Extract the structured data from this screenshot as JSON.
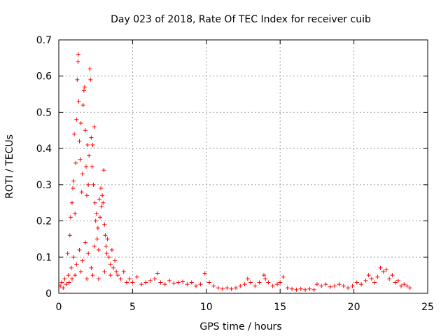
{
  "chart_data": {
    "type": "scatter",
    "title": "Day 023 of 2018, Rate Of TEC Index for receiver cuib",
    "xlabel": "GPS time / hours",
    "ylabel": "ROTI / TECUs",
    "xlim": [
      0,
      25
    ],
    "ylim": [
      0,
      0.7
    ],
    "xticks": [
      0,
      5,
      10,
      15,
      20,
      25
    ],
    "xtick_labels": [
      "0",
      "5",
      "10",
      "15",
      "20",
      "25"
    ],
    "yticks": [
      0,
      0.1,
      0.2,
      0.3,
      0.4,
      0.5,
      0.6,
      0.7
    ],
    "ytick_labels": [
      "0",
      "0.1",
      "0.2",
      "0.3",
      "0.4",
      "0.5",
      "0.6",
      "0.7"
    ],
    "grid": true,
    "marker": "plus",
    "color": "#ff0000",
    "series": [
      {
        "name": "ROTI",
        "points": [
          [
            0.1,
            0.02
          ],
          [
            0.2,
            0.03
          ],
          [
            0.3,
            0.015
          ],
          [
            0.4,
            0.04
          ],
          [
            0.5,
            0.025
          ],
          [
            0.6,
            0.11
          ],
          [
            0.65,
            0.05
          ],
          [
            0.7,
            0.03
          ],
          [
            0.75,
            0.16
          ],
          [
            0.8,
            0.21
          ],
          [
            0.85,
            0.07
          ],
          [
            0.9,
            0.25
          ],
          [
            0.95,
            0.29
          ],
          [
            1.0,
            0.31
          ],
          [
            1.05,
            0.44
          ],
          [
            1.1,
            0.22
          ],
          [
            1.15,
            0.36
          ],
          [
            1.2,
            0.48
          ],
          [
            1.25,
            0.59
          ],
          [
            1.3,
            0.64
          ],
          [
            1.32,
            0.66
          ],
          [
            1.35,
            0.53
          ],
          [
            1.4,
            0.42
          ],
          [
            1.45,
            0.37
          ],
          [
            1.5,
            0.47
          ],
          [
            1.55,
            0.28
          ],
          [
            1.6,
            0.33
          ],
          [
            1.65,
            0.52
          ],
          [
            1.7,
            0.56
          ],
          [
            1.75,
            0.57
          ],
          [
            1.8,
            0.45
          ],
          [
            1.85,
            0.35
          ],
          [
            1.9,
            0.27
          ],
          [
            1.95,
            0.41
          ],
          [
            2.0,
            0.3
          ],
          [
            2.05,
            0.38
          ],
          [
            2.1,
            0.62
          ],
          [
            2.15,
            0.59
          ],
          [
            2.2,
            0.43
          ],
          [
            2.25,
            0.35
          ],
          [
            2.3,
            0.41
          ],
          [
            2.35,
            0.3
          ],
          [
            2.4,
            0.46
          ],
          [
            2.45,
            0.25
          ],
          [
            2.5,
            0.2
          ],
          [
            2.55,
            0.22
          ],
          [
            2.6,
            0.15
          ],
          [
            2.65,
            0.18
          ],
          [
            2.7,
            0.12
          ],
          [
            2.75,
            0.26
          ],
          [
            2.8,
            0.21
          ],
          [
            2.85,
            0.29
          ],
          [
            2.9,
            0.24
          ],
          [
            2.95,
            0.27
          ],
          [
            3.0,
            0.25
          ],
          [
            3.05,
            0.34
          ],
          [
            3.1,
            0.19
          ],
          [
            3.15,
            0.16
          ],
          [
            3.2,
            0.13
          ],
          [
            3.25,
            0.11
          ],
          [
            3.3,
            0.15
          ],
          [
            3.4,
            0.1
          ],
          [
            3.5,
            0.08
          ],
          [
            3.6,
            0.12
          ],
          [
            3.7,
            0.07
          ],
          [
            3.8,
            0.09
          ],
          [
            3.9,
            0.06
          ],
          [
            4.0,
            0.05
          ],
          [
            4.2,
            0.04
          ],
          [
            4.4,
            0.06
          ],
          [
            4.6,
            0.03
          ],
          [
            4.8,
            0.04
          ],
          [
            1.0,
            0.1
          ],
          [
            1.2,
            0.08
          ],
          [
            1.4,
            0.12
          ],
          [
            1.6,
            0.09
          ],
          [
            1.8,
            0.14
          ],
          [
            2.0,
            0.11
          ],
          [
            2.2,
            0.07
          ],
          [
            2.4,
            0.13
          ],
          [
            1.1,
            0.05
          ],
          [
            1.5,
            0.06
          ],
          [
            1.9,
            0.04
          ],
          [
            2.3,
            0.05
          ],
          [
            2.7,
            0.04
          ],
          [
            3.1,
            0.06
          ],
          [
            3.5,
            0.05
          ],
          [
            0.9,
            0.04
          ],
          [
            5.0,
            0.03
          ],
          [
            5.3,
            0.045
          ],
          [
            5.6,
            0.025
          ],
          [
            5.9,
            0.03
          ],
          [
            6.2,
            0.035
          ],
          [
            6.5,
            0.04
          ],
          [
            6.7,
            0.055
          ],
          [
            6.9,
            0.03
          ],
          [
            7.2,
            0.025
          ],
          [
            7.5,
            0.035
          ],
          [
            7.8,
            0.028
          ],
          [
            8.1,
            0.03
          ],
          [
            8.4,
            0.032
          ],
          [
            8.7,
            0.025
          ],
          [
            9.0,
            0.03
          ],
          [
            9.3,
            0.02
          ],
          [
            9.6,
            0.025
          ],
          [
            9.9,
            0.055
          ],
          [
            10.2,
            0.03
          ],
          [
            10.5,
            0.02
          ],
          [
            10.8,
            0.015
          ],
          [
            11.1,
            0.012
          ],
          [
            11.4,
            0.015
          ],
          [
            11.7,
            0.012
          ],
          [
            12.0,
            0.015
          ],
          [
            12.3,
            0.02
          ],
          [
            12.6,
            0.025
          ],
          [
            12.8,
            0.04
          ],
          [
            13.0,
            0.03
          ],
          [
            13.3,
            0.02
          ],
          [
            13.6,
            0.03
          ],
          [
            13.9,
            0.05
          ],
          [
            14.0,
            0.04
          ],
          [
            14.2,
            0.03
          ],
          [
            14.5,
            0.02
          ],
          [
            14.8,
            0.025
          ],
          [
            15.0,
            0.03
          ],
          [
            15.2,
            0.045
          ],
          [
            15.5,
            0.015
          ],
          [
            15.8,
            0.012
          ],
          [
            16.1,
            0.01
          ],
          [
            16.4,
            0.012
          ],
          [
            16.7,
            0.01
          ],
          [
            17.0,
            0.012
          ],
          [
            17.3,
            0.01
          ],
          [
            17.5,
            0.025
          ],
          [
            17.8,
            0.02
          ],
          [
            18.1,
            0.025
          ],
          [
            18.4,
            0.018
          ],
          [
            18.7,
            0.02
          ],
          [
            19.0,
            0.025
          ],
          [
            19.3,
            0.02
          ],
          [
            19.6,
            0.015
          ],
          [
            19.9,
            0.02
          ],
          [
            20.2,
            0.03
          ],
          [
            20.5,
            0.025
          ],
          [
            20.8,
            0.035
          ],
          [
            21.0,
            0.05
          ],
          [
            21.2,
            0.04
          ],
          [
            21.4,
            0.03
          ],
          [
            21.6,
            0.045
          ],
          [
            21.8,
            0.07
          ],
          [
            22.0,
            0.06
          ],
          [
            22.2,
            0.065
          ],
          [
            22.4,
            0.04
          ],
          [
            22.6,
            0.05
          ],
          [
            22.8,
            0.03
          ],
          [
            23.0,
            0.035
          ],
          [
            23.2,
            0.02
          ],
          [
            23.4,
            0.025
          ],
          [
            23.6,
            0.02
          ],
          [
            23.8,
            0.015
          ]
        ]
      }
    ]
  }
}
